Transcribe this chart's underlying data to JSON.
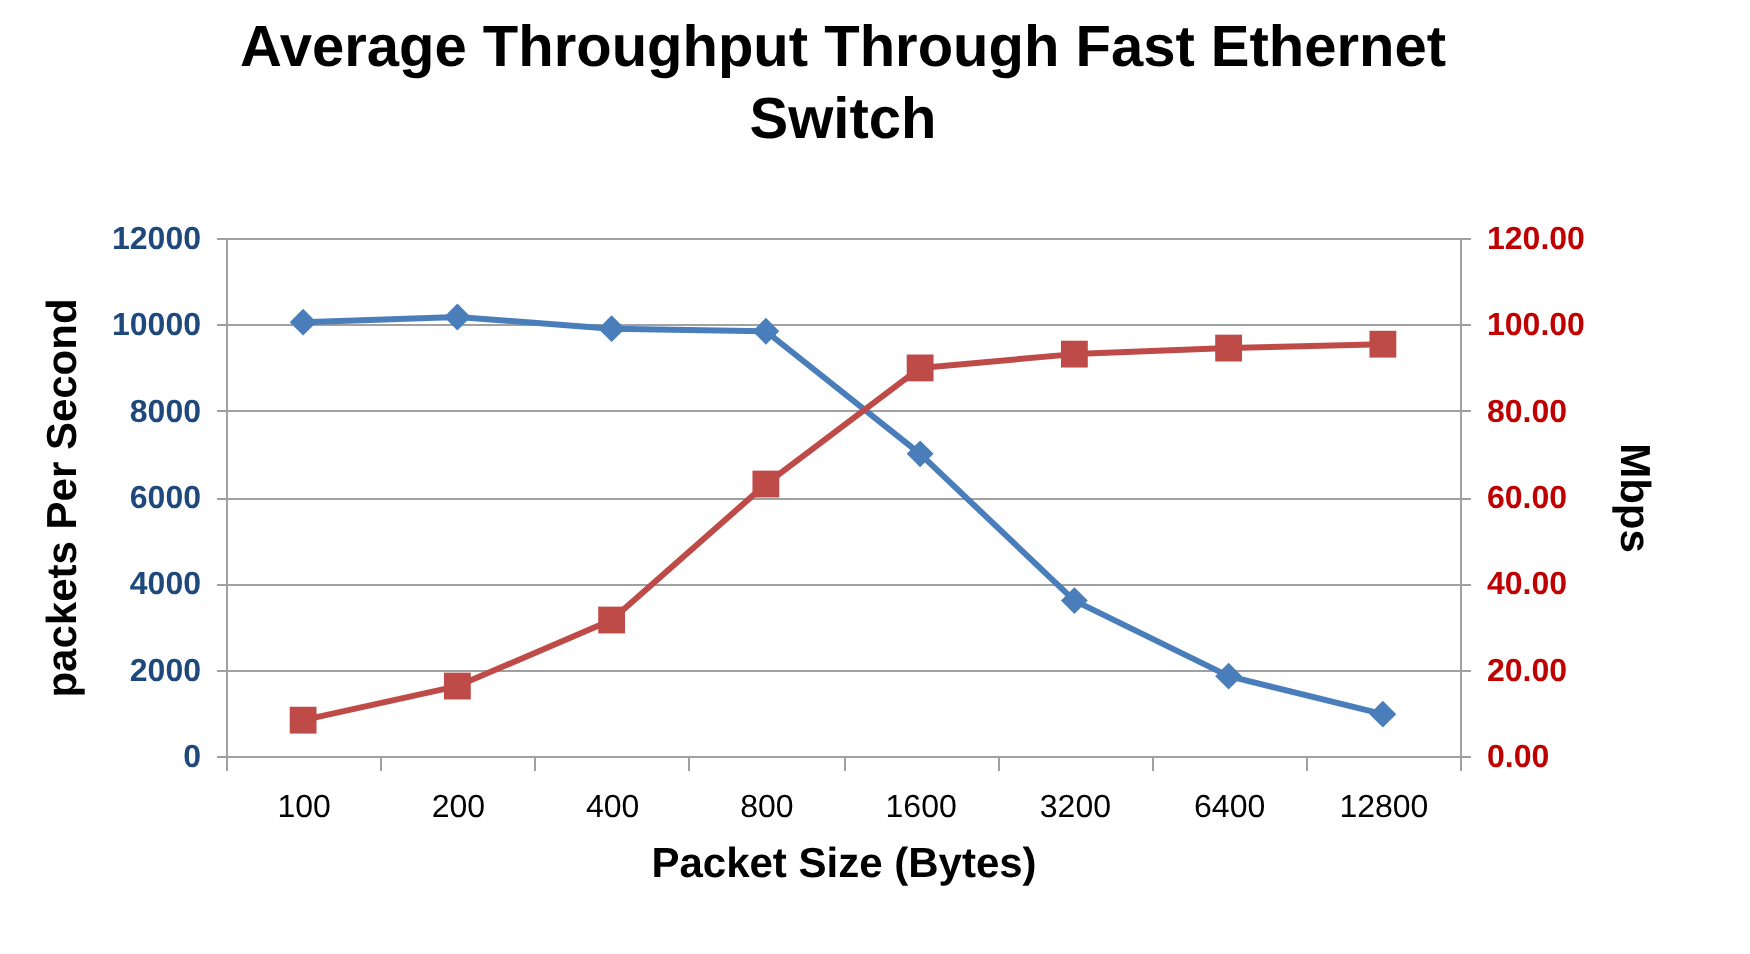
{
  "chart_data": {
    "type": "line",
    "title": "Average Throughput Through Fast Ethernet Switch",
    "xlabel": "Packet Size (Bytes)",
    "ylabel": "packets Per Second",
    "y2label": "Mbps",
    "categories": [
      "100",
      "200",
      "400",
      "800",
      "1600",
      "3200",
      "6400",
      "12800"
    ],
    "series": [
      {
        "color": "#4a7ebb",
        "marker": "diamond",
        "values": [
          10050,
          10170,
          9900,
          9840,
          7000,
          3600,
          1850,
          970
        ]
      },
      {
        "color": "#be4b48",
        "marker": "square",
        "axis": "y2",
        "values": [
          8.3,
          16.2,
          31.5,
          63.0,
          89.9,
          93.1,
          94.5,
          95.4
        ]
      }
    ],
    "ylim": [
      0,
      12000
    ],
    "yticks": [
      0,
      2000,
      4000,
      6000,
      8000,
      10000,
      12000
    ],
    "y2lim": [
      0,
      120
    ],
    "y2ticks": [
      {
        "value": 0,
        "label": "0.00"
      },
      {
        "value": 20,
        "label": "20.00"
      },
      {
        "value": 40,
        "label": "40.00"
      },
      {
        "value": 60,
        "label": "60.00"
      },
      {
        "value": 80,
        "label": "80.00"
      },
      {
        "value": 100,
        "label": "100.00"
      },
      {
        "value": 120,
        "label": "120.00"
      }
    ],
    "grid": "y"
  }
}
